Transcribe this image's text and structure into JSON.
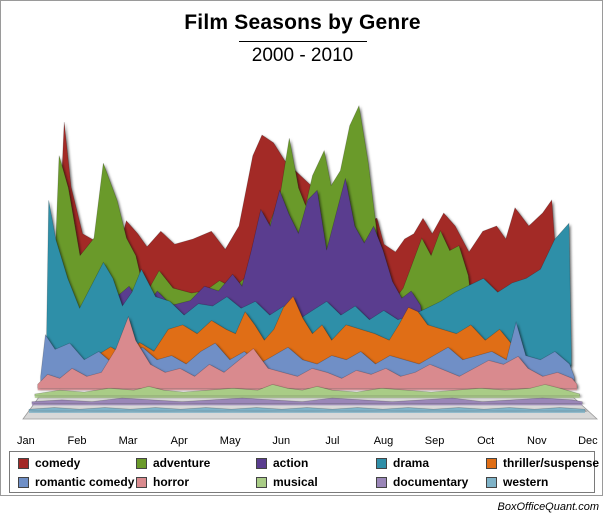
{
  "chart_data": {
    "type": "area",
    "title": "Film Seasons by Genre",
    "subtitle": "2000 - 2010",
    "categories": [
      "Jan",
      "Feb",
      "Mar",
      "Apr",
      "May",
      "Jun",
      "Jul",
      "Aug",
      "Sep",
      "Oct",
      "Nov",
      "Dec"
    ],
    "x_positions": [
      0.0,
      1.0,
      2.0,
      3.0,
      4.0,
      5.0,
      6.0,
      7.0,
      8.0,
      9.0,
      10.0,
      11.0
    ],
    "ylim": [
      0,
      100
    ],
    "grid": false,
    "legend": "bottom",
    "series": [
      {
        "name": "comedy",
        "color": "#a32926",
        "x": [
          0,
          0.2,
          0.35,
          0.6,
          1.0,
          1.3,
          1.55,
          1.8,
          2.0,
          2.3,
          2.6,
          3.0,
          3.4,
          3.7,
          4.0,
          4.3,
          4.5,
          4.75,
          5.0,
          5.3,
          5.6,
          6.0,
          6.4,
          6.8,
          7.0,
          7.15,
          7.4,
          7.6,
          7.8,
          8.0,
          8.2,
          8.45,
          8.7,
          9.0,
          9.3,
          9.6,
          9.8,
          10.0,
          10.3,
          10.6,
          10.8,
          11.0
        ],
        "values": [
          5,
          85,
          60,
          42,
          38,
          30,
          47,
          42,
          37,
          43,
          38,
          40,
          43,
          36,
          45,
          72,
          80,
          77,
          70,
          65,
          60,
          52,
          50,
          47,
          48,
          38,
          35,
          40,
          42,
          48,
          42,
          50,
          45,
          35,
          43,
          45,
          40,
          52,
          45,
          50,
          55,
          5
        ]
      },
      {
        "name": "adventure",
        "color": "#6a9a2a",
        "x": [
          0,
          0.15,
          0.35,
          0.6,
          0.9,
          1.1,
          1.4,
          1.6,
          1.8,
          2.0,
          2.3,
          2.6,
          3.0,
          3.3,
          3.6,
          3.9,
          4.2,
          4.5,
          4.7,
          4.9,
          5.1,
          5.3,
          5.45,
          5.6,
          5.85,
          6.0,
          6.2,
          6.4,
          6.6,
          6.8,
          7.0,
          7.2,
          7.35,
          7.55,
          7.75,
          7.95,
          8.15,
          8.35,
          8.55,
          8.75,
          8.95,
          9.1
        ],
        "values": [
          5,
          78,
          65,
          38,
          45,
          75,
          60,
          45,
          38,
          22,
          32,
          25,
          23,
          24,
          28,
          25,
          30,
          42,
          52,
          62,
          85,
          65,
          58,
          70,
          80,
          66,
          72,
          90,
          98,
          75,
          45,
          30,
          20,
          25,
          35,
          45,
          38,
          48,
          40,
          42,
          30,
          5
        ]
      },
      {
        "name": "action",
        "color": "#5a3d8f",
        "x": [
          0.5,
          0.8,
          1.1,
          1.4,
          1.7,
          2.0,
          2.3,
          2.6,
          3.0,
          3.3,
          3.6,
          3.9,
          4.1,
          4.3,
          4.5,
          4.7,
          4.9,
          5.1,
          5.3,
          5.5,
          5.7,
          5.9,
          6.1,
          6.3,
          6.5,
          6.7,
          6.9,
          7.1,
          7.3,
          7.5,
          7.7,
          7.9,
          8.0
        ],
        "values": [
          5,
          20,
          22,
          25,
          30,
          20,
          28,
          22,
          24,
          30,
          28,
          35,
          30,
          45,
          62,
          55,
          70,
          60,
          52,
          66,
          70,
          45,
          60,
          75,
          55,
          48,
          55,
          45,
          32,
          25,
          28,
          22,
          5
        ]
      },
      {
        "name": "drama",
        "color": "#2f8fa8",
        "x": [
          0,
          0.05,
          0.2,
          0.45,
          0.7,
          0.95,
          1.2,
          1.4,
          1.6,
          1.8,
          2.0,
          2.3,
          2.6,
          2.9,
          3.2,
          3.5,
          3.8,
          4.1,
          4.4,
          4.7,
          5.0,
          5.3,
          5.6,
          5.9,
          6.2,
          6.5,
          6.8,
          7.1,
          7.4,
          7.7,
          8.0,
          8.3,
          8.6,
          8.9,
          9.2,
          9.5,
          9.8,
          10.1,
          10.4,
          10.7,
          11.0,
          11.05
        ],
        "values": [
          5,
          72,
          55,
          38,
          25,
          35,
          45,
          38,
          26,
          32,
          42,
          30,
          28,
          22,
          27,
          26,
          30,
          25,
          28,
          22,
          26,
          20,
          24,
          28,
          22,
          26,
          20,
          24,
          20,
          22,
          25,
          28,
          32,
          35,
          38,
          32,
          36,
          38,
          42,
          55,
          62,
          5
        ]
      },
      {
        "name": "thriller/suspense",
        "color": "#e06e16",
        "x": [
          0.8,
          1.1,
          1.4,
          1.7,
          2.0,
          2.3,
          2.6,
          2.9,
          3.2,
          3.5,
          3.8,
          4.0,
          4.2,
          4.4,
          4.6,
          4.8,
          5.0,
          5.2,
          5.4,
          5.6,
          5.8,
          6.0,
          6.3,
          6.6,
          6.9,
          7.2,
          7.4,
          7.6,
          7.8,
          8.0,
          8.3,
          8.6,
          8.9,
          9.2,
          9.5,
          9.8,
          10.0
        ],
        "values": [
          2,
          8,
          12,
          8,
          14,
          10,
          20,
          22,
          18,
          24,
          20,
          18,
          28,
          22,
          15,
          20,
          30,
          35,
          25,
          18,
          22,
          15,
          22,
          20,
          18,
          15,
          22,
          30,
          28,
          22,
          20,
          18,
          22,
          15,
          20,
          12,
          2
        ]
      },
      {
        "name": "romantic comedy",
        "color": "#6f8fc6",
        "x": [
          0,
          0.1,
          0.3,
          0.6,
          0.9,
          1.2,
          1.5,
          1.8,
          2.1,
          2.4,
          2.7,
          3.0,
          3.3,
          3.6,
          3.9,
          4.2,
          4.5,
          4.8,
          5.1,
          5.4,
          5.7,
          6.0,
          6.3,
          6.6,
          6.9,
          7.2,
          7.5,
          7.8,
          8.1,
          8.4,
          8.7,
          9.0,
          9.3,
          9.6,
          9.8,
          10.0,
          10.3,
          10.6,
          10.9,
          11.0
        ],
        "values": [
          2,
          22,
          15,
          18,
          10,
          14,
          8,
          12,
          16,
          10,
          12,
          8,
          14,
          18,
          10,
          14,
          8,
          12,
          16,
          10,
          8,
          12,
          10,
          14,
          8,
          12,
          10,
          8,
          12,
          16,
          10,
          12,
          14,
          10,
          28,
          12,
          10,
          14,
          8,
          2
        ]
      },
      {
        "name": "horror",
        "color": "#d98a8e",
        "x": [
          0,
          0.2,
          0.45,
          0.7,
          1.0,
          1.3,
          1.6,
          1.85,
          2.0,
          2.3,
          2.6,
          2.9,
          3.2,
          3.5,
          3.8,
          4.1,
          4.4,
          4.7,
          5.0,
          5.3,
          5.6,
          5.9,
          6.2,
          6.5,
          6.8,
          7.1,
          7.4,
          7.7,
          8.0,
          8.3,
          8.6,
          8.9,
          9.2,
          9.5,
          9.8,
          10.0,
          10.3,
          10.6,
          10.9,
          11.0
        ],
        "values": [
          2,
          7,
          5,
          10,
          6,
          8,
          20,
          36,
          24,
          12,
          8,
          10,
          6,
          12,
          8,
          14,
          20,
          10,
          8,
          6,
          10,
          8,
          5,
          9,
          7,
          10,
          6,
          8,
          12,
          9,
          6,
          10,
          14,
          12,
          16,
          10,
          6,
          8,
          5,
          2
        ]
      },
      {
        "name": "musical",
        "color": "#a9cc86",
        "x": [
          0,
          0.5,
          1.0,
          1.5,
          2.0,
          2.3,
          2.6,
          3.0,
          3.5,
          4.0,
          4.5,
          4.8,
          5.1,
          5.4,
          5.7,
          6.0,
          6.5,
          7.0,
          7.5,
          8.0,
          8.5,
          9.0,
          9.5,
          10.0,
          10.3,
          10.6,
          11.0
        ],
        "values": [
          1,
          3,
          2,
          4,
          3,
          5,
          3,
          2,
          3,
          4,
          3,
          6,
          4,
          3,
          5,
          3,
          2,
          4,
          3,
          2,
          3,
          4,
          3,
          4,
          6,
          4,
          1
        ]
      },
      {
        "name": "documentary",
        "color": "#9a86b8",
        "x": [
          0,
          0.6,
          1.2,
          1.8,
          2.4,
          3.0,
          3.6,
          4.2,
          4.8,
          5.4,
          6.0,
          6.6,
          7.2,
          7.8,
          8.4,
          9.0,
          9.6,
          10.2,
          10.8,
          11.0
        ],
        "values": [
          1,
          2,
          1,
          3,
          2,
          1,
          2,
          3,
          2,
          1,
          3,
          2,
          1,
          2,
          3,
          1,
          2,
          3,
          2,
          1
        ]
      },
      {
        "name": "western",
        "color": "#7fb3c8",
        "x": [
          0,
          0.5,
          1.0,
          1.5,
          2.0,
          2.5,
          3.0,
          3.5,
          4.0,
          4.5,
          5.0,
          5.5,
          6.0,
          6.5,
          7.0,
          7.5,
          8.0,
          8.5,
          9.0,
          9.5,
          10.0,
          10.5,
          11.0
        ],
        "values": [
          1,
          2,
          1,
          2,
          1,
          2,
          1,
          2,
          1,
          2,
          1,
          2,
          1,
          2,
          1,
          2,
          1,
          2,
          1,
          2,
          1,
          2,
          1
        ]
      }
    ]
  },
  "credit": "BoxOfficeQuant.com"
}
